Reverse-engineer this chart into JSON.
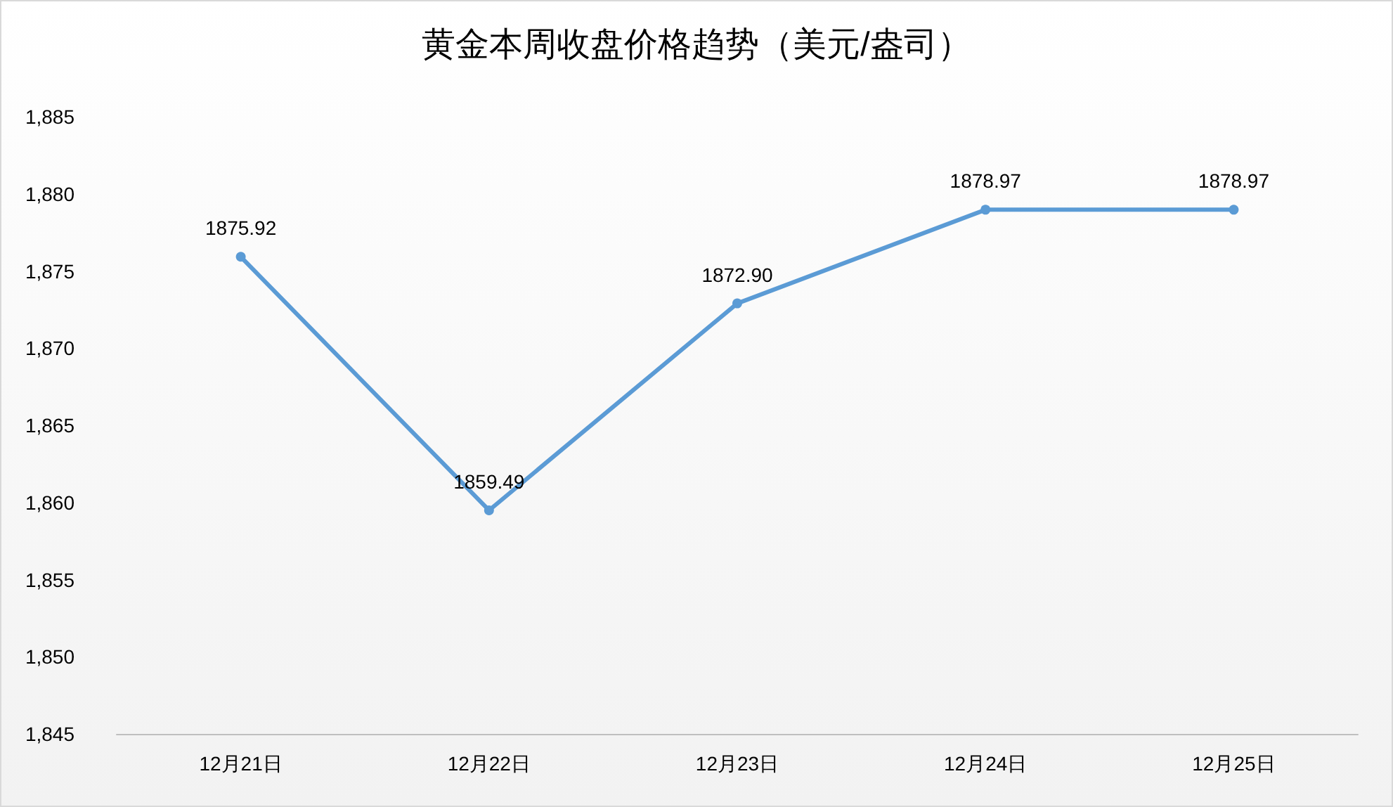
{
  "chart_data": {
    "type": "line",
    "title": "黄金本周收盘价格趋势（美元/盎司）",
    "categories": [
      "12月21日",
      "12月22日",
      "12月23日",
      "12月24日",
      "12月25日"
    ],
    "series": [
      {
        "color": "#5b9bd5",
        "values": [
          1875.92,
          1859.49,
          1872.9,
          1878.97,
          1878.97
        ],
        "value_labels": [
          "1875.92",
          "1859.49",
          "1872.90",
          "1878.97",
          "1878.97"
        ]
      }
    ],
    "ylim": [
      1845,
      1885
    ],
    "yticks": [
      {
        "value": 1845,
        "label": "1,845"
      },
      {
        "value": 1850,
        "label": "1,850"
      },
      {
        "value": 1855,
        "label": "1,855"
      },
      {
        "value": 1860,
        "label": "1,860"
      },
      {
        "value": 1865,
        "label": "1,865"
      },
      {
        "value": 1870,
        "label": "1,870"
      },
      {
        "value": 1875,
        "label": "1,875"
      },
      {
        "value": 1880,
        "label": "1,880"
      },
      {
        "value": 1885,
        "label": "1,885"
      }
    ],
    "grid": false,
    "marker": "circle",
    "line_style": "solid"
  }
}
